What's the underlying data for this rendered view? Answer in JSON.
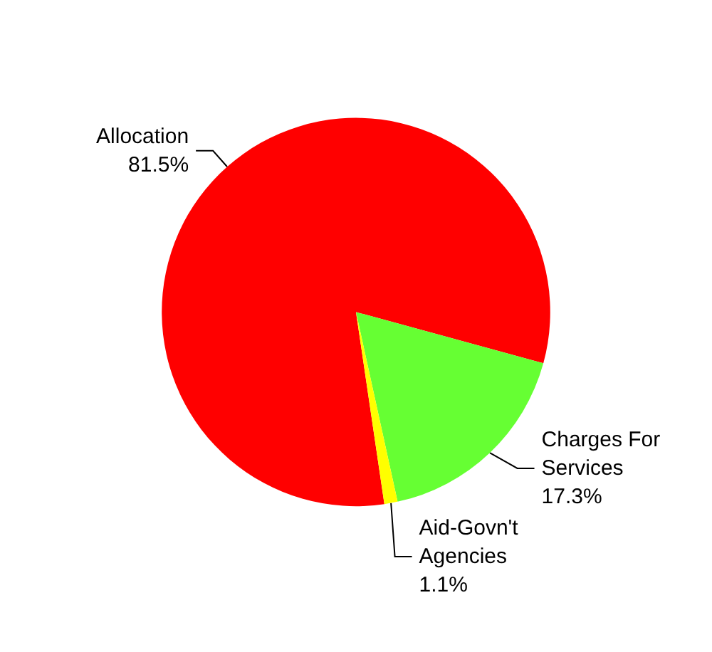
{
  "chart_data": {
    "type": "pie",
    "categories": [
      "Allocation",
      "Charges For Services",
      "Aid-Govn't Agencies"
    ],
    "values": [
      81.5,
      17.3,
      1.1
    ],
    "value_labels": [
      "81.5%",
      "17.3%",
      "1.1%"
    ],
    "colors": [
      "#ff0000",
      "#66ff33",
      "#ffff00"
    ],
    "legend": false
  }
}
